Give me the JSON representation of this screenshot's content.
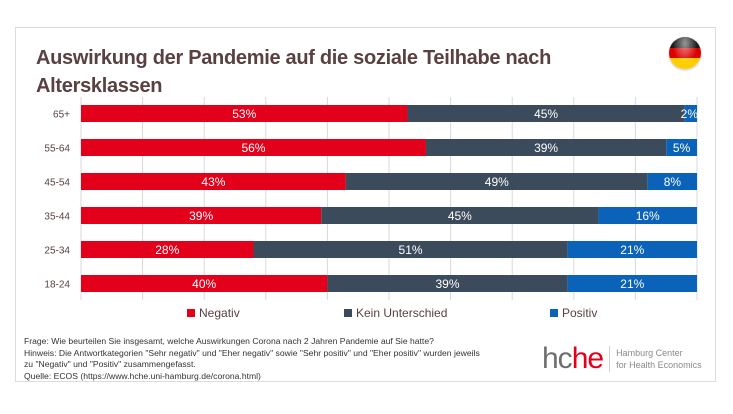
{
  "header": {
    "title_line1": "Auswirkung der Pandemie auf die soziale Teilhabe nach",
    "title_line2": "Altersklassen",
    "flag_icon": "germany-flag-icon",
    "flag_colors": [
      "#1a1a1a",
      "#dd0000",
      "#ffce00"
    ]
  },
  "chart_data": {
    "type": "bar",
    "orientation": "horizontal",
    "stacked": true,
    "title": "Auswirkung der Pandemie auf die soziale Teilhabe nach Altersklassen",
    "xlabel": "",
    "ylabel": "",
    "xlim": [
      0,
      100
    ],
    "grid": true,
    "grid_step": 10,
    "legend_position": "bottom",
    "categories": [
      "65+",
      "55-64",
      "45-54",
      "35-44",
      "25-34",
      "18-24"
    ],
    "series": [
      {
        "name": "Negativ",
        "color": "#e2001a",
        "values": [
          53,
          56,
          43,
          39,
          28,
          40
        ],
        "labels": [
          "53%",
          "56%",
          "43%",
          "39%",
          "28%",
          "40%"
        ]
      },
      {
        "name": "Kein Unterschied",
        "color": "#3c4b5c",
        "values": [
          45,
          39,
          49,
          45,
          51,
          39
        ],
        "labels": [
          "45%",
          "39%",
          "49%",
          "45%",
          "51%",
          "39%"
        ]
      },
      {
        "name": "Positiv",
        "color": "#0a63b8",
        "values": [
          2,
          5,
          8,
          16,
          21,
          21
        ],
        "labels": [
          "2%",
          "5%",
          "8%",
          "16%",
          "21%",
          "21%"
        ]
      }
    ]
  },
  "legend": [
    {
      "label": "Negativ",
      "color": "#e2001a"
    },
    {
      "label": "Kein Unterschied",
      "color": "#3c4b5c"
    },
    {
      "label": "Positiv",
      "color": "#0a63b8"
    }
  ],
  "notes": {
    "frage": "Frage: Wie beurteilen Sie insgesamt, welche Auswirkungen Corona nach 2 Jahren Pandemie auf Sie hatte?",
    "hinweis_line1": "Hinweis: Die Antwortkategorien \"Sehr negativ\" und \"Eher negativ\" sowie \"Sehr positiv\" und \"Eher positiv\" wurden jeweils",
    "hinweis_line2": "zu \"Negativ\" und \"Positiv\" zusammengefasst.",
    "quelle": "Quelle: ECOS (https://www.hche.uni-hamburg.de/corona.html)"
  },
  "logo": {
    "mark_part1": "hc",
    "mark_part2": "he",
    "text_line1": "Hamburg Center",
    "text_line2": "for Health Economics"
  }
}
